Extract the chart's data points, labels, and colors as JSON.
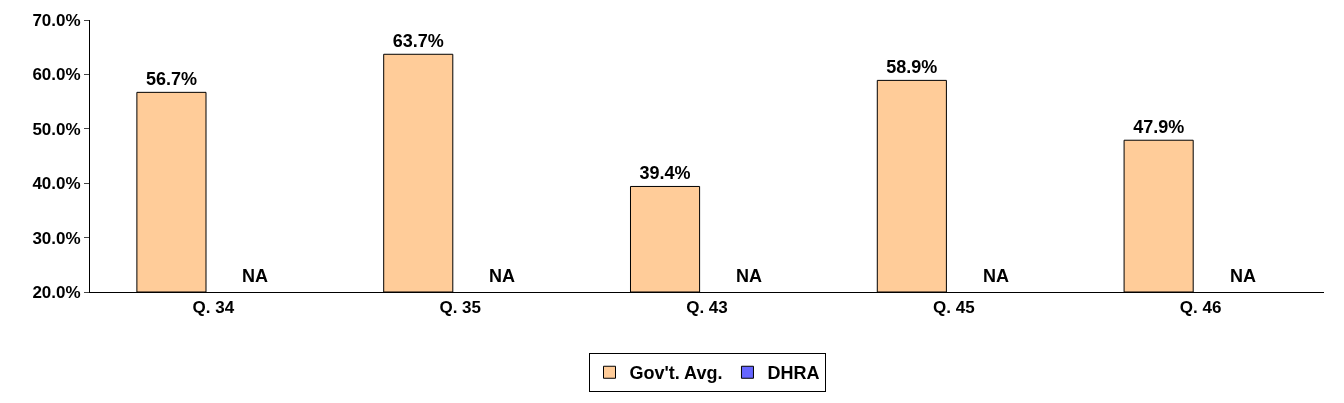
{
  "chart_data": {
    "type": "bar",
    "categories": [
      "Q. 34",
      "Q. 35",
      "Q. 43",
      "Q. 45",
      "Q. 46"
    ],
    "series": [
      {
        "name": "Gov't. Avg.",
        "color": "#ffcc99",
        "values": [
          56.7,
          63.7,
          39.4,
          58.9,
          47.9
        ],
        "value_labels": [
          "56.7%",
          "63.7%",
          "39.4%",
          "58.9%",
          "47.9%"
        ]
      },
      {
        "name": "DHRA",
        "color": "#6666ff",
        "values": [
          null,
          null,
          null,
          null,
          null
        ],
        "value_labels": [
          "NA",
          "NA",
          "NA",
          "NA",
          "NA"
        ]
      }
    ],
    "ylim": [
      20,
      70
    ],
    "yticks": [
      {
        "value": 20,
        "label": "20.0%"
      },
      {
        "value": 30,
        "label": "30.0%"
      },
      {
        "value": 40,
        "label": "40.0%"
      },
      {
        "value": 50,
        "label": "50.0%"
      },
      {
        "value": 60,
        "label": "60.0%"
      },
      {
        "value": 70,
        "label": "70.0%"
      }
    ],
    "grid": false,
    "legend": "bottom"
  }
}
